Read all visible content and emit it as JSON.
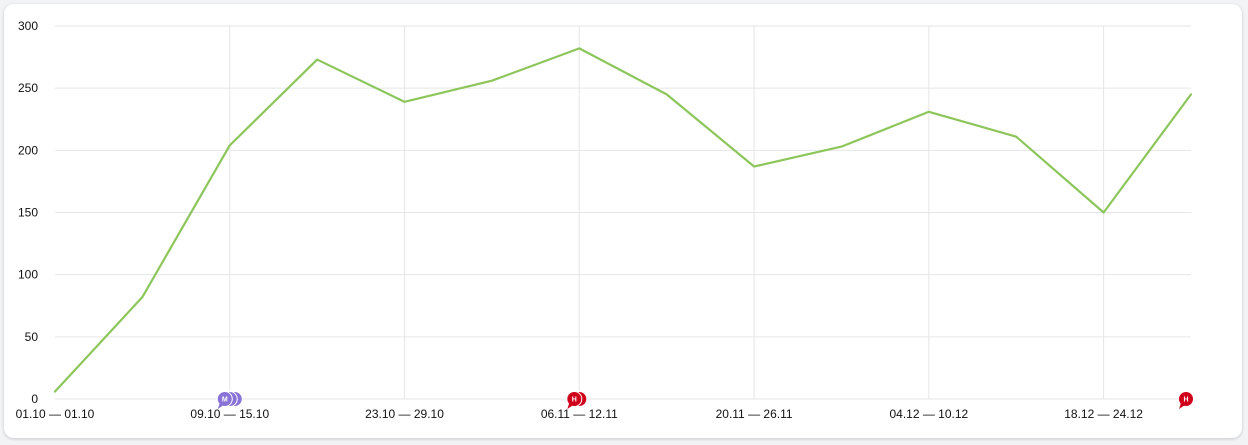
{
  "chart_data": {
    "type": "line",
    "title": "",
    "xlabel": "",
    "ylabel": "",
    "ylim": [
      0,
      300
    ],
    "yticks": [
      0,
      50,
      100,
      150,
      200,
      250,
      300
    ],
    "grid": true,
    "x_tick_labels": [
      "01.10 — 01.10",
      "09.10 — 15.10",
      "23.10 — 29.10",
      "06.11 — 12.11",
      "20.11 — 26.11",
      "04.12 — 10.12",
      "18.12 — 24.12"
    ],
    "series": [
      {
        "color": "#8cc65a",
        "values": [
          6,
          82,
          204,
          273,
          239,
          256,
          282,
          245,
          187,
          203,
          231,
          211,
          150,
          245
        ]
      }
    ],
    "annotations": [
      {
        "index": 2,
        "letter": "M",
        "color": "#8a73d6",
        "stack": 3
      },
      {
        "index": 6,
        "letter": "Н",
        "color": "#d0021b",
        "stack": 2
      },
      {
        "index": 13,
        "letter": "Н",
        "color": "#d0021b",
        "stack": 1
      }
    ]
  }
}
